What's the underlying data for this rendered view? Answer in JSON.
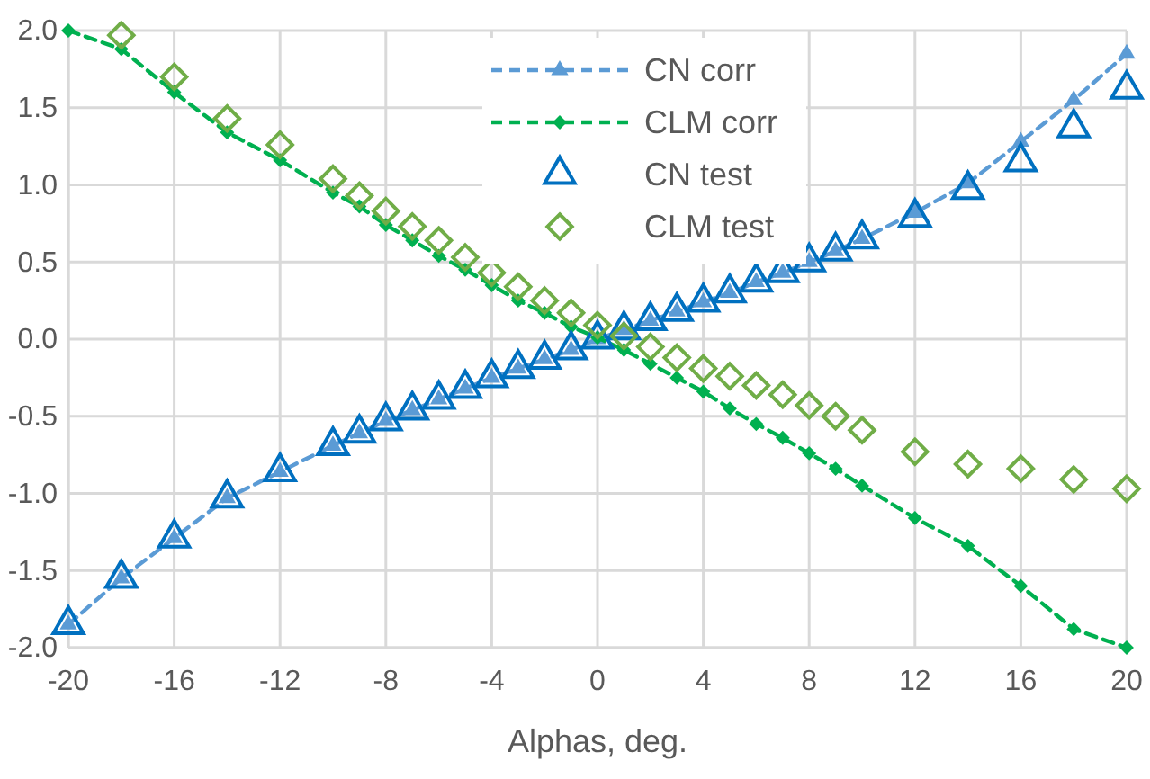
{
  "chart_data": {
    "type": "line",
    "xlabel": "Alphas, deg.",
    "x": [
      -20,
      -18,
      -16,
      -14,
      -12,
      -10,
      -9,
      -8,
      -7,
      -6,
      -5,
      -4,
      -3,
      -2,
      -1,
      0,
      1,
      2,
      3,
      4,
      5,
      6,
      7,
      8,
      9,
      10,
      12,
      14,
      16,
      18,
      20
    ],
    "xlim": [
      -20,
      20
    ],
    "xticks": [
      -20,
      -16,
      -12,
      -8,
      -4,
      0,
      4,
      8,
      12,
      16,
      20
    ],
    "ylim": [
      -2,
      2
    ],
    "yticks": [
      {
        "value": -2,
        "label": "-2.0"
      },
      {
        "value": -1.5,
        "label": "-1.5"
      },
      {
        "value": -1,
        "label": "-1.0"
      },
      {
        "value": -0.5,
        "label": "-0.5"
      },
      {
        "value": 0,
        "label": "0.0"
      },
      {
        "value": 0.5,
        "label": "0.5"
      },
      {
        "value": 1,
        "label": "1.0"
      },
      {
        "value": 1.5,
        "label": "1.5"
      },
      {
        "value": 2,
        "label": "2.0"
      }
    ],
    "grid": true,
    "legend": "top right",
    "series": [
      {
        "name": "CN corr",
        "marker": "triangle",
        "line_style": "dashed",
        "color": "#5b9bd5",
        "values": [
          -1.85,
          -1.55,
          -1.29,
          -1.03,
          -0.86,
          -0.69,
          -0.61,
          -0.53,
          -0.46,
          -0.39,
          -0.32,
          -0.25,
          -0.19,
          -0.13,
          -0.07,
          0.0,
          0.06,
          0.12,
          0.18,
          0.24,
          0.3,
          0.37,
          0.43,
          0.5,
          0.57,
          0.65,
          0.82,
          1.01,
          1.28,
          1.55,
          1.85
        ]
      },
      {
        "name": "CLM corr",
        "marker": "diamond",
        "line_style": "dashed",
        "color": "#00b050",
        "values": [
          2.0,
          1.88,
          1.6,
          1.34,
          1.16,
          0.95,
          0.86,
          0.74,
          0.64,
          0.54,
          0.45,
          0.35,
          0.25,
          0.17,
          0.08,
          0.01,
          -0.07,
          -0.16,
          -0.25,
          -0.34,
          -0.45,
          -0.55,
          -0.64,
          -0.74,
          -0.84,
          -0.95,
          -1.16,
          -1.34,
          -1.6,
          -1.88,
          -2.0
        ]
      },
      {
        "name": "CN test",
        "type": "scatter",
        "marker": "triangle",
        "color": "#0070c0",
        "values": [
          -1.85,
          -1.55,
          -1.29,
          -1.03,
          -0.86,
          -0.69,
          -0.61,
          -0.53,
          -0.46,
          -0.39,
          -0.32,
          -0.25,
          -0.19,
          -0.13,
          -0.07,
          0.0,
          0.06,
          0.12,
          0.18,
          0.24,
          0.3,
          0.37,
          0.43,
          0.5,
          0.57,
          0.65,
          0.79,
          0.97,
          1.15,
          1.37,
          1.62
        ]
      },
      {
        "name": "CLM test",
        "type": "scatter",
        "marker": "diamond",
        "color": "#70ad47",
        "values": [
          null,
          1.97,
          1.7,
          1.43,
          1.26,
          1.04,
          0.93,
          0.83,
          0.73,
          0.64,
          0.53,
          0.43,
          0.34,
          0.25,
          0.17,
          0.09,
          0.02,
          -0.05,
          -0.12,
          -0.19,
          -0.24,
          -0.3,
          -0.36,
          -0.43,
          -0.5,
          -0.59,
          -0.73,
          -0.81,
          -0.84,
          -0.91,
          -0.97
        ]
      }
    ]
  }
}
